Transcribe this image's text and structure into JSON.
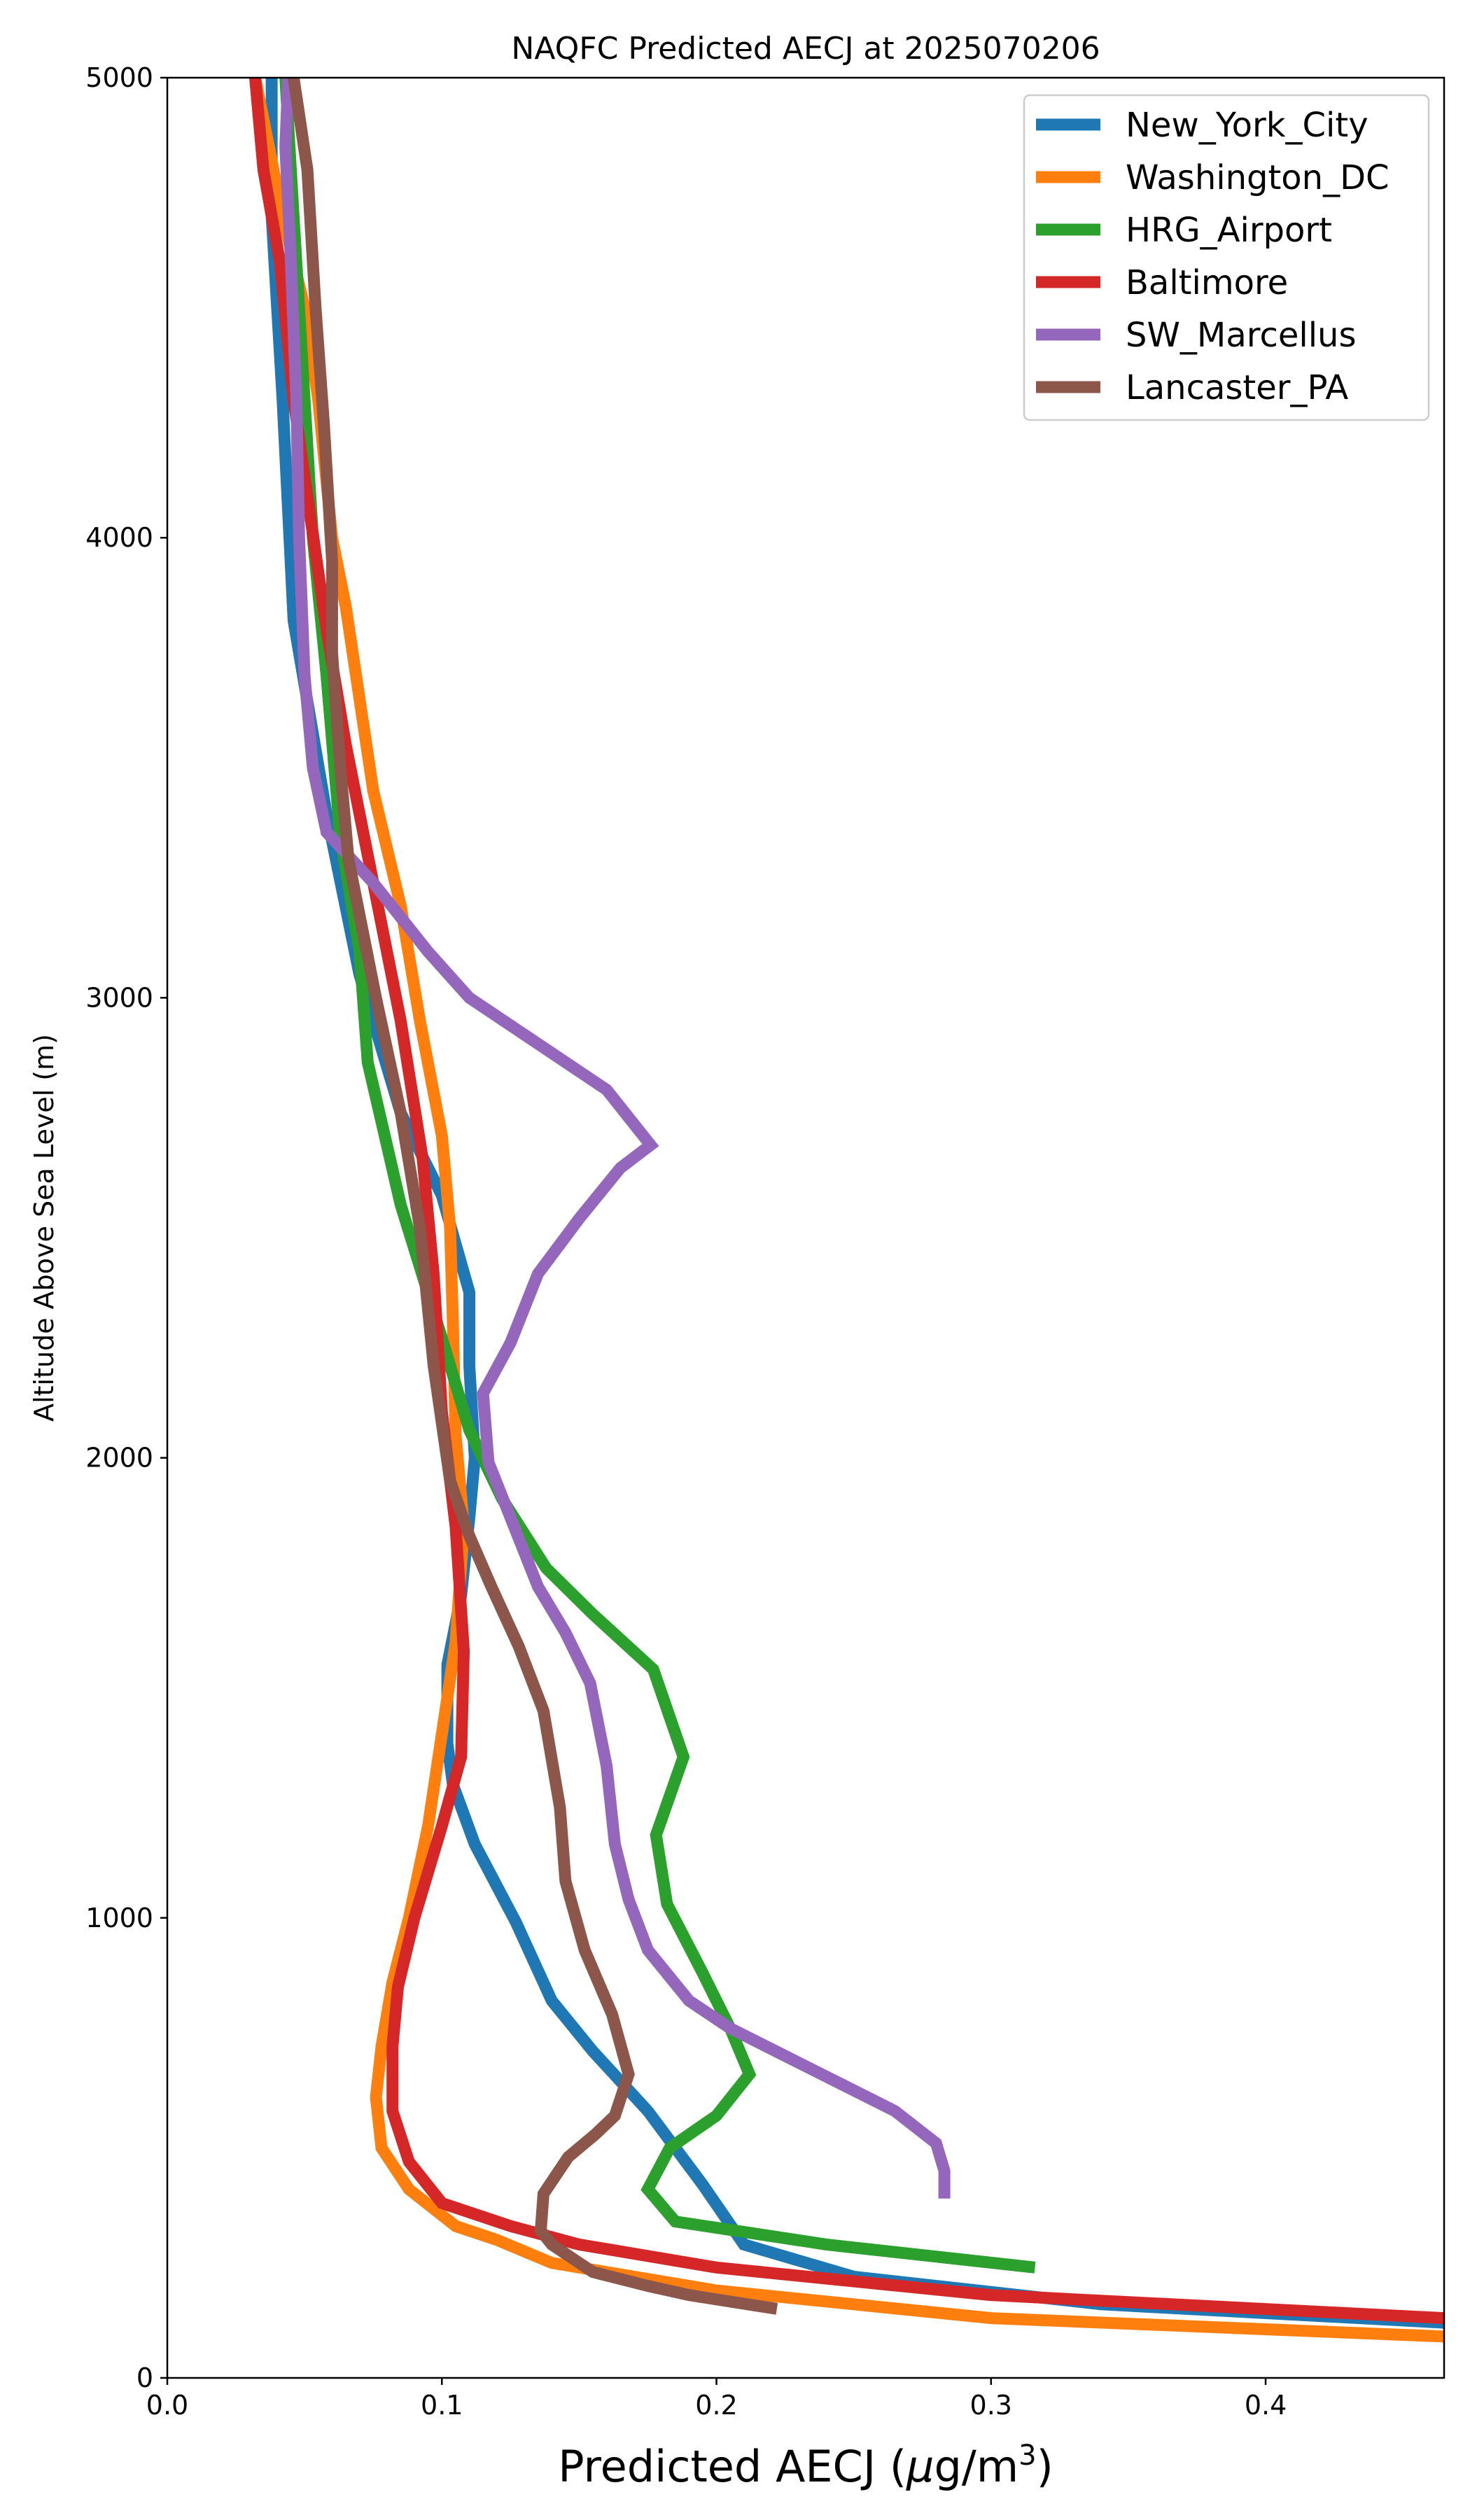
{
  "chart_data": {
    "type": "line",
    "title": "NAQFC Predicted AECJ at 2025070206",
    "xlabel": "Predicted AECJ (μg/m³)",
    "ylabel": "Altitude Above Sea Level (m)",
    "xlim": [
      0.0,
      0.465
    ],
    "ylim": [
      0,
      5000
    ],
    "xticks": [
      "0.0",
      "0.1",
      "0.2",
      "0.3",
      "0.4"
    ],
    "yticks": [
      "0",
      "1000",
      "2000",
      "3000",
      "4000",
      "5000"
    ],
    "legend_position": "top-right",
    "grid": false,
    "series": [
      {
        "name": "New_York_City",
        "color": "#1f77b4",
        "points": [
          [
            0.465,
            120
          ],
          [
            0.34,
            160
          ],
          [
            0.25,
            220
          ],
          [
            0.21,
            290
          ],
          [
            0.195,
            420
          ],
          [
            0.175,
            580
          ],
          [
            0.155,
            710
          ],
          [
            0.14,
            820
          ],
          [
            0.127,
            990
          ],
          [
            0.112,
            1160
          ],
          [
            0.104,
            1290
          ],
          [
            0.102,
            1380
          ],
          [
            0.102,
            1550
          ],
          [
            0.107,
            1700
          ],
          [
            0.11,
            1870
          ],
          [
            0.112,
            2000
          ],
          [
            0.11,
            2200
          ],
          [
            0.11,
            2360
          ],
          [
            0.1,
            2570
          ],
          [
            0.085,
            2750
          ],
          [
            0.07,
            3050
          ],
          [
            0.058,
            3400
          ],
          [
            0.046,
            3820
          ],
          [
            0.042,
            4300
          ],
          [
            0.038,
            4700
          ],
          [
            0.038,
            5000
          ]
        ]
      },
      {
        "name": "Washington_DC",
        "color": "#ff7f0e",
        "points": [
          [
            0.465,
            90
          ],
          [
            0.3,
            130
          ],
          [
            0.2,
            190
          ],
          [
            0.14,
            250
          ],
          [
            0.12,
            300
          ],
          [
            0.105,
            330
          ],
          [
            0.088,
            410
          ],
          [
            0.078,
            500
          ],
          [
            0.076,
            610
          ],
          [
            0.078,
            720
          ],
          [
            0.082,
            860
          ],
          [
            0.088,
            1000
          ],
          [
            0.095,
            1200
          ],
          [
            0.1,
            1400
          ],
          [
            0.105,
            1600
          ],
          [
            0.108,
            1850
          ],
          [
            0.105,
            2050
          ],
          [
            0.104,
            2300
          ],
          [
            0.103,
            2500
          ],
          [
            0.1,
            2700
          ],
          [
            0.092,
            2950
          ],
          [
            0.085,
            3200
          ],
          [
            0.075,
            3450
          ],
          [
            0.065,
            3850
          ],
          [
            0.06,
            4000
          ],
          [
            0.055,
            4300
          ],
          [
            0.05,
            4500
          ],
          [
            0.042,
            4700
          ],
          [
            0.032,
            5000
          ]
        ]
      },
      {
        "name": "HRG_Airport",
        "color": "#2ca02c",
        "points": [
          [
            0.316,
            240
          ],
          [
            0.24,
            290
          ],
          [
            0.185,
            340
          ],
          [
            0.175,
            410
          ],
          [
            0.183,
            500
          ],
          [
            0.2,
            570
          ],
          [
            0.212,
            660
          ],
          [
            0.205,
            760
          ],
          [
            0.195,
            880
          ],
          [
            0.182,
            1030
          ],
          [
            0.178,
            1180
          ],
          [
            0.188,
            1350
          ],
          [
            0.177,
            1540
          ],
          [
            0.155,
            1660
          ],
          [
            0.138,
            1760
          ],
          [
            0.122,
            1910
          ],
          [
            0.11,
            2060
          ],
          [
            0.1,
            2260
          ],
          [
            0.085,
            2550
          ],
          [
            0.073,
            2860
          ],
          [
            0.07,
            3100
          ],
          [
            0.063,
            3350
          ],
          [
            0.058,
            3700
          ],
          [
            0.053,
            4000
          ],
          [
            0.05,
            4300
          ],
          [
            0.046,
            4700
          ],
          [
            0.043,
            5000
          ]
        ]
      },
      {
        "name": "Baltimore",
        "color": "#d62728",
        "points": [
          [
            0.465,
            130
          ],
          [
            0.3,
            180
          ],
          [
            0.2,
            240
          ],
          [
            0.15,
            290
          ],
          [
            0.125,
            330
          ],
          [
            0.1,
            380
          ],
          [
            0.088,
            470
          ],
          [
            0.082,
            580
          ],
          [
            0.082,
            720
          ],
          [
            0.084,
            850
          ],
          [
            0.09,
            1000
          ],
          [
            0.1,
            1200
          ],
          [
            0.107,
            1350
          ],
          [
            0.108,
            1580
          ],
          [
            0.105,
            1850
          ],
          [
            0.1,
            2100
          ],
          [
            0.097,
            2400
          ],
          [
            0.093,
            2650
          ],
          [
            0.085,
            2950
          ],
          [
            0.075,
            3250
          ],
          [
            0.065,
            3550
          ],
          [
            0.058,
            3800
          ],
          [
            0.052,
            4050
          ],
          [
            0.046,
            4300
          ],
          [
            0.041,
            4600
          ],
          [
            0.035,
            4800
          ],
          [
            0.032,
            5000
          ]
        ]
      },
      {
        "name": "SW_Marcellus",
        "color": "#9467bd",
        "points": [
          [
            0.283,
            390
          ],
          [
            0.283,
            450
          ],
          [
            0.28,
            510
          ],
          [
            0.265,
            580
          ],
          [
            0.245,
            640
          ],
          [
            0.225,
            700
          ],
          [
            0.205,
            760
          ],
          [
            0.19,
            820
          ],
          [
            0.175,
            930
          ],
          [
            0.168,
            1040
          ],
          [
            0.163,
            1160
          ],
          [
            0.16,
            1330
          ],
          [
            0.154,
            1510
          ],
          [
            0.145,
            1620
          ],
          [
            0.135,
            1720
          ],
          [
            0.125,
            1870
          ],
          [
            0.117,
            1990
          ],
          [
            0.115,
            2140
          ],
          [
            0.125,
            2250
          ],
          [
            0.135,
            2400
          ],
          [
            0.15,
            2520
          ],
          [
            0.165,
            2630
          ],
          [
            0.176,
            2680
          ],
          [
            0.16,
            2800
          ],
          [
            0.135,
            2900
          ],
          [
            0.11,
            3000
          ],
          [
            0.095,
            3100
          ],
          [
            0.075,
            3250
          ],
          [
            0.058,
            3360
          ],
          [
            0.053,
            3500
          ],
          [
            0.05,
            3700
          ],
          [
            0.048,
            4000
          ],
          [
            0.047,
            4300
          ],
          [
            0.045,
            4600
          ],
          [
            0.043,
            4850
          ],
          [
            0.044,
            5000
          ]
        ]
      },
      {
        "name": "Lancaster_PA",
        "color": "#8c564b",
        "points": [
          [
            0.222,
            150
          ],
          [
            0.19,
            180
          ],
          [
            0.175,
            200
          ],
          [
            0.155,
            230
          ],
          [
            0.14,
            290
          ],
          [
            0.136,
            320
          ],
          [
            0.137,
            400
          ],
          [
            0.146,
            480
          ],
          [
            0.156,
            530
          ],
          [
            0.163,
            570
          ],
          [
            0.168,
            660
          ],
          [
            0.162,
            790
          ],
          [
            0.152,
            930
          ],
          [
            0.145,
            1080
          ],
          [
            0.143,
            1240
          ],
          [
            0.137,
            1450
          ],
          [
            0.128,
            1590
          ],
          [
            0.118,
            1720
          ],
          [
            0.11,
            1830
          ],
          [
            0.103,
            1950
          ],
          [
            0.097,
            2200
          ],
          [
            0.092,
            2500
          ],
          [
            0.085,
            2750
          ],
          [
            0.076,
            3000
          ],
          [
            0.066,
            3300
          ],
          [
            0.063,
            3500
          ],
          [
            0.06,
            3750
          ],
          [
            0.06,
            3950
          ],
          [
            0.057,
            4250
          ],
          [
            0.054,
            4500
          ],
          [
            0.051,
            4800
          ],
          [
            0.046,
            5000
          ]
        ]
      }
    ]
  }
}
